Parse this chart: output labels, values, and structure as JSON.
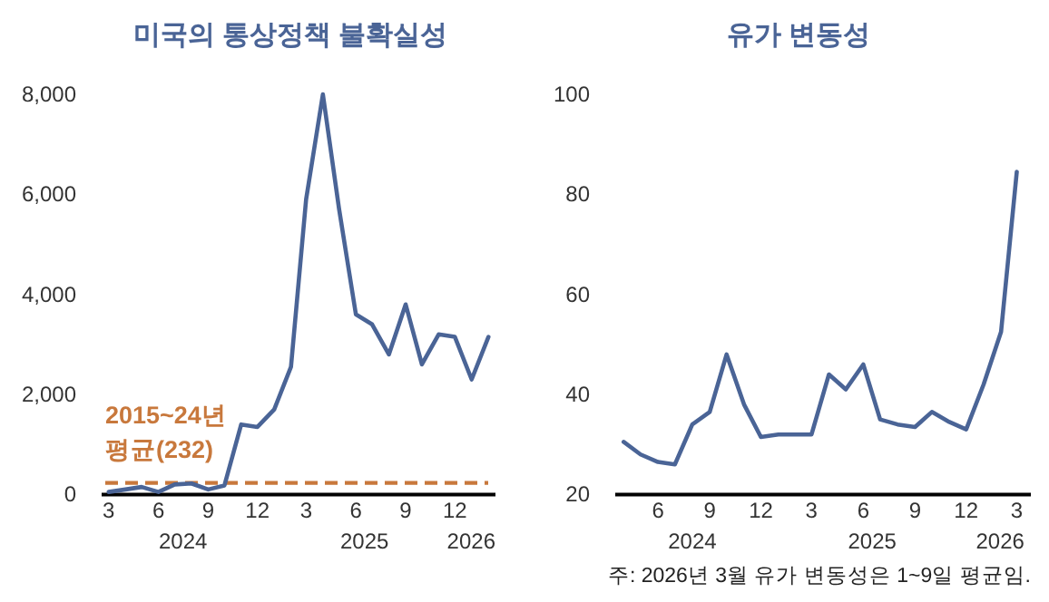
{
  "chart_data": [
    {
      "type": "line",
      "title": "미국의 통상정책 불확실성",
      "x": [
        "2024-03",
        "2024-04",
        "2024-05",
        "2024-06",
        "2024-07",
        "2024-08",
        "2024-09",
        "2024-10",
        "2024-11",
        "2024-12",
        "2025-01",
        "2025-02",
        "2025-03",
        "2025-04",
        "2025-05",
        "2025-06",
        "2025-07",
        "2025-08",
        "2025-09",
        "2025-10",
        "2025-11",
        "2025-12",
        "2026-01",
        "2026-02"
      ],
      "series": [
        {
          "color": "#4a6496",
          "values": [
            50,
            100,
            150,
            50,
            200,
            220,
            100,
            180,
            1400,
            1350,
            1700,
            2550,
            5900,
            8000,
            5700,
            3600,
            3400,
            2800,
            3800,
            2600,
            3200,
            3150,
            2300,
            3150
          ]
        }
      ],
      "line_style": "solid",
      "xlim": [
        "2024-02-17",
        "2026-02-14"
      ],
      "xticks": [
        {
          "value": "2024-03",
          "label": "3"
        },
        {
          "value": "2024-06",
          "label": "6"
        },
        {
          "value": "2024-09",
          "label": "9"
        },
        {
          "value": "2024-12",
          "label": "12"
        },
        {
          "value": "2025-03",
          "label": "3"
        },
        {
          "value": "2025-06",
          "label": "6"
        },
        {
          "value": "2025-09",
          "label": "9"
        },
        {
          "value": "2025-12",
          "label": "12"
        }
      ],
      "ylim": [
        0,
        8000
      ],
      "yticks": [
        0,
        {
          "value": 2000,
          "label": "2,000"
        },
        {
          "value": 4000,
          "label": "4,000"
        },
        {
          "value": 6000,
          "label": "6,000"
        },
        {
          "value": 8000,
          "label": "8,000"
        }
      ],
      "ref_lines": [
        {
          "axis": "y",
          "value": 232,
          "label": "2015~24년\n평균(232)",
          "color": "#c8783c",
          "line_style": "dashed"
        }
      ],
      "annotations": [
        "2024",
        "2025",
        "2026"
      ]
    },
    {
      "type": "line",
      "title": "유가 변동성",
      "x": [
        "2024-04",
        "2024-05",
        "2024-06",
        "2024-07",
        "2024-08",
        "2024-09",
        "2024-10",
        "2024-11",
        "2024-12",
        "2025-01",
        "2025-02",
        "2025-03",
        "2025-04",
        "2025-05",
        "2025-06",
        "2025-07",
        "2025-08",
        "2025-09",
        "2025-10",
        "2025-11",
        "2025-12",
        "2026-01",
        "2026-02",
        "2026-03"
      ],
      "series": [
        {
          "color": "#4a6496",
          "values": [
            30.5,
            28,
            26.5,
            26,
            34,
            36.5,
            48,
            38,
            31.5,
            32,
            32,
            32,
            44,
            41,
            46,
            35,
            34,
            33.5,
            36.5,
            34.5,
            33,
            42,
            52.5,
            84.5
          ]
        }
      ],
      "line_style": "solid",
      "xlim": [
        "2024-03-17",
        "2026-03-26"
      ],
      "xticks": [
        {
          "value": "2024-06",
          "label": "6"
        },
        {
          "value": "2024-09",
          "label": "9"
        },
        {
          "value": "2024-12",
          "label": "12"
        },
        {
          "value": "2025-03",
          "label": "3"
        },
        {
          "value": "2025-06",
          "label": "6"
        },
        {
          "value": "2025-09",
          "label": "9"
        },
        {
          "value": "2025-12",
          "label": "12"
        },
        {
          "value": "2026-03",
          "label": "3"
        }
      ],
      "ylim": [
        20,
        100
      ],
      "yticks": [
        20,
        40,
        60,
        80,
        100
      ],
      "annotations": [
        "2024",
        "2025",
        "2026",
        "주: 2026년 3월 유가 변동성은 1~9일 평균임."
      ]
    }
  ]
}
